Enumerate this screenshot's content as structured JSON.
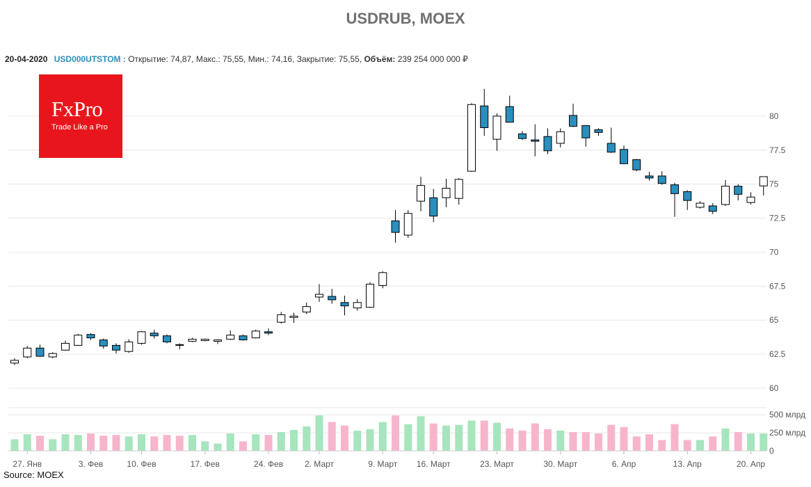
{
  "title": "USDRUB, MOEX",
  "info": {
    "date": "20-04-2020",
    "ticker": "USD000UTSTOM :",
    "fields": "Открытие: 74,87, Макс.: 75,55, Мин.: 74,16, Закрытие: 75,55,",
    "volume_label": "Объём:",
    "volume_value": "239 254 000 000 ₽"
  },
  "logo": {
    "brand": "FxPro",
    "tagline": "Trade Like a Pro",
    "color": "#e8161c"
  },
  "source": "Source: MOEX",
  "colors": {
    "up_fill": "#ffffff",
    "down_fill": "#2a8fbd",
    "up_volume": "#a6e5bd",
    "down_volume": "#f7b5cc",
    "grid": "#e6e6e6",
    "axis_text": "#555555"
  },
  "chart_data": {
    "type": "candlestick",
    "ylim": [
      60,
      82.5
    ],
    "y_ticks": [
      "60",
      "62.5",
      "65",
      "67.5",
      "70",
      "72.5",
      "75",
      "77.5",
      "80"
    ],
    "volume_ticks": [
      "0",
      "250 млрд",
      "500 млрд"
    ],
    "volume_max": 560,
    "x_labels": [
      {
        "label": "27. Янв",
        "index": 1
      },
      {
        "label": "3. Фев",
        "index": 6
      },
      {
        "label": "10. Фев",
        "index": 10
      },
      {
        "label": "17. Фев",
        "index": 15
      },
      {
        "label": "24. Фев",
        "index": 20
      },
      {
        "label": "2. Март",
        "index": 24
      },
      {
        "label": "9. Март",
        "index": 29
      },
      {
        "label": "16. Март",
        "index": 33
      },
      {
        "label": "23. Март",
        "index": 38
      },
      {
        "label": "30. Март",
        "index": 43
      },
      {
        "label": "6. Апр",
        "index": 48
      },
      {
        "label": "13. Апр",
        "index": 53
      },
      {
        "label": "20. Апр",
        "index": 58
      }
    ],
    "candles": [
      {
        "o": 61.85,
        "h": 62.2,
        "l": 61.7,
        "c": 62.05,
        "v": 160
      },
      {
        "o": 62.3,
        "h": 63.1,
        "l": 62.2,
        "c": 62.95,
        "v": 230
      },
      {
        "o": 62.95,
        "h": 63.2,
        "l": 62.3,
        "c": 62.35,
        "v": 210
      },
      {
        "o": 62.3,
        "h": 62.65,
        "l": 62.2,
        "c": 62.55,
        "v": 160
      },
      {
        "o": 62.8,
        "h": 63.5,
        "l": 62.75,
        "c": 63.3,
        "v": 230
      },
      {
        "o": 63.15,
        "h": 64.0,
        "l": 63.1,
        "c": 63.9,
        "v": 220
      },
      {
        "o": 63.95,
        "h": 64.05,
        "l": 63.55,
        "c": 63.7,
        "v": 240
      },
      {
        "o": 63.55,
        "h": 63.65,
        "l": 62.9,
        "c": 63.1,
        "v": 210
      },
      {
        "o": 63.15,
        "h": 63.3,
        "l": 62.55,
        "c": 62.8,
        "v": 220
      },
      {
        "o": 62.7,
        "h": 63.6,
        "l": 62.6,
        "c": 63.4,
        "v": 200
      },
      {
        "o": 63.3,
        "h": 64.2,
        "l": 63.2,
        "c": 64.15,
        "v": 230
      },
      {
        "o": 64.05,
        "h": 64.3,
        "l": 63.65,
        "c": 63.85,
        "v": 200
      },
      {
        "o": 63.85,
        "h": 63.95,
        "l": 63.3,
        "c": 63.4,
        "v": 220
      },
      {
        "o": 63.2,
        "h": 63.3,
        "l": 62.85,
        "c": 63.15,
        "v": 210
      },
      {
        "o": 63.45,
        "h": 63.7,
        "l": 63.4,
        "c": 63.6,
        "v": 220
      },
      {
        "o": 63.5,
        "h": 63.65,
        "l": 63.45,
        "c": 63.6,
        "v": 130
      },
      {
        "o": 63.45,
        "h": 63.6,
        "l": 63.25,
        "c": 63.55,
        "v": 100
      },
      {
        "o": 63.6,
        "h": 64.25,
        "l": 63.55,
        "c": 63.9,
        "v": 240
      },
      {
        "o": 63.85,
        "h": 63.95,
        "l": 63.5,
        "c": 63.55,
        "v": 130
      },
      {
        "o": 63.7,
        "h": 64.3,
        "l": 63.65,
        "c": 64.2,
        "v": 230
      },
      {
        "o": 64.15,
        "h": 64.4,
        "l": 63.9,
        "c": 64.05,
        "v": 220
      },
      {
        "o": 64.85,
        "h": 65.6,
        "l": 64.75,
        "c": 65.4,
        "v": 260
      },
      {
        "o": 65.2,
        "h": 65.55,
        "l": 64.8,
        "c": 65.3,
        "v": 290
      },
      {
        "o": 65.6,
        "h": 66.3,
        "l": 65.45,
        "c": 66.0,
        "v": 340
      },
      {
        "o": 66.7,
        "h": 67.65,
        "l": 66.35,
        "c": 66.9,
        "v": 490
      },
      {
        "o": 66.75,
        "h": 67.3,
        "l": 66.2,
        "c": 66.5,
        "v": 400
      },
      {
        "o": 66.3,
        "h": 66.8,
        "l": 65.35,
        "c": 66.05,
        "v": 350
      },
      {
        "o": 65.9,
        "h": 66.55,
        "l": 65.7,
        "c": 66.3,
        "v": 280
      },
      {
        "o": 65.95,
        "h": 67.8,
        "l": 65.9,
        "c": 67.65,
        "v": 300
      },
      {
        "o": 67.55,
        "h": 68.6,
        "l": 67.35,
        "c": 68.5,
        "v": 400
      },
      {
        "o": 72.3,
        "h": 73.1,
        "l": 70.7,
        "c": 71.45,
        "v": 490
      },
      {
        "o": 71.25,
        "h": 73.1,
        "l": 71.05,
        "c": 72.85,
        "v": 370
      },
      {
        "o": 73.75,
        "h": 75.55,
        "l": 73.0,
        "c": 74.9,
        "v": 480
      },
      {
        "o": 74.0,
        "h": 74.65,
        "l": 72.2,
        "c": 72.65,
        "v": 380
      },
      {
        "o": 74.0,
        "h": 75.4,
        "l": 73.3,
        "c": 74.7,
        "v": 350
      },
      {
        "o": 73.95,
        "h": 75.45,
        "l": 73.5,
        "c": 75.35,
        "v": 360
      },
      {
        "o": 75.95,
        "h": 80.95,
        "l": 75.9,
        "c": 80.85,
        "v": 420
      },
      {
        "o": 80.75,
        "h": 82.0,
        "l": 78.55,
        "c": 79.15,
        "v": 420
      },
      {
        "o": 78.3,
        "h": 80.2,
        "l": 77.45,
        "c": 80.0,
        "v": 390
      },
      {
        "o": 80.7,
        "h": 81.5,
        "l": 79.55,
        "c": 79.55,
        "v": 310
      },
      {
        "o": 78.7,
        "h": 78.9,
        "l": 78.25,
        "c": 78.35,
        "v": 280
      },
      {
        "o": 78.25,
        "h": 79.4,
        "l": 77.05,
        "c": 78.15,
        "v": 380
      },
      {
        "o": 78.5,
        "h": 79.1,
        "l": 77.2,
        "c": 77.45,
        "v": 300
      },
      {
        "o": 78.0,
        "h": 79.1,
        "l": 77.7,
        "c": 78.85,
        "v": 280
      },
      {
        "o": 80.05,
        "h": 80.9,
        "l": 79.2,
        "c": 79.25,
        "v": 260
      },
      {
        "o": 79.3,
        "h": 79.35,
        "l": 77.75,
        "c": 78.4,
        "v": 260
      },
      {
        "o": 79.0,
        "h": 79.1,
        "l": 78.55,
        "c": 78.8,
        "v": 240
      },
      {
        "o": 78.0,
        "h": 79.15,
        "l": 77.3,
        "c": 77.35,
        "v": 360
      },
      {
        "o": 77.55,
        "h": 77.85,
        "l": 76.5,
        "c": 76.5,
        "v": 330
      },
      {
        "o": 76.8,
        "h": 76.85,
        "l": 75.95,
        "c": 76.05,
        "v": 200
      },
      {
        "o": 75.6,
        "h": 75.9,
        "l": 75.25,
        "c": 75.45,
        "v": 230
      },
      {
        "o": 75.6,
        "h": 75.95,
        "l": 74.95,
        "c": 75.05,
        "v": 150
      },
      {
        "o": 74.95,
        "h": 75.1,
        "l": 72.6,
        "c": 74.3,
        "v": 370
      },
      {
        "o": 74.45,
        "h": 74.55,
        "l": 73.1,
        "c": 73.8,
        "v": 150
      },
      {
        "o": 73.3,
        "h": 73.75,
        "l": 73.2,
        "c": 73.6,
        "v": 150
      },
      {
        "o": 73.4,
        "h": 73.6,
        "l": 72.8,
        "c": 73.0,
        "v": 200
      },
      {
        "o": 73.5,
        "h": 75.3,
        "l": 73.4,
        "c": 74.85,
        "v": 310
      },
      {
        "o": 74.85,
        "h": 75.0,
        "l": 73.8,
        "c": 74.25,
        "v": 260
      },
      {
        "o": 73.65,
        "h": 74.4,
        "l": 73.5,
        "c": 74.05,
        "v": 240
      },
      {
        "o": 74.87,
        "h": 75.55,
        "l": 74.16,
        "c": 75.55,
        "v": 240
      }
    ]
  }
}
